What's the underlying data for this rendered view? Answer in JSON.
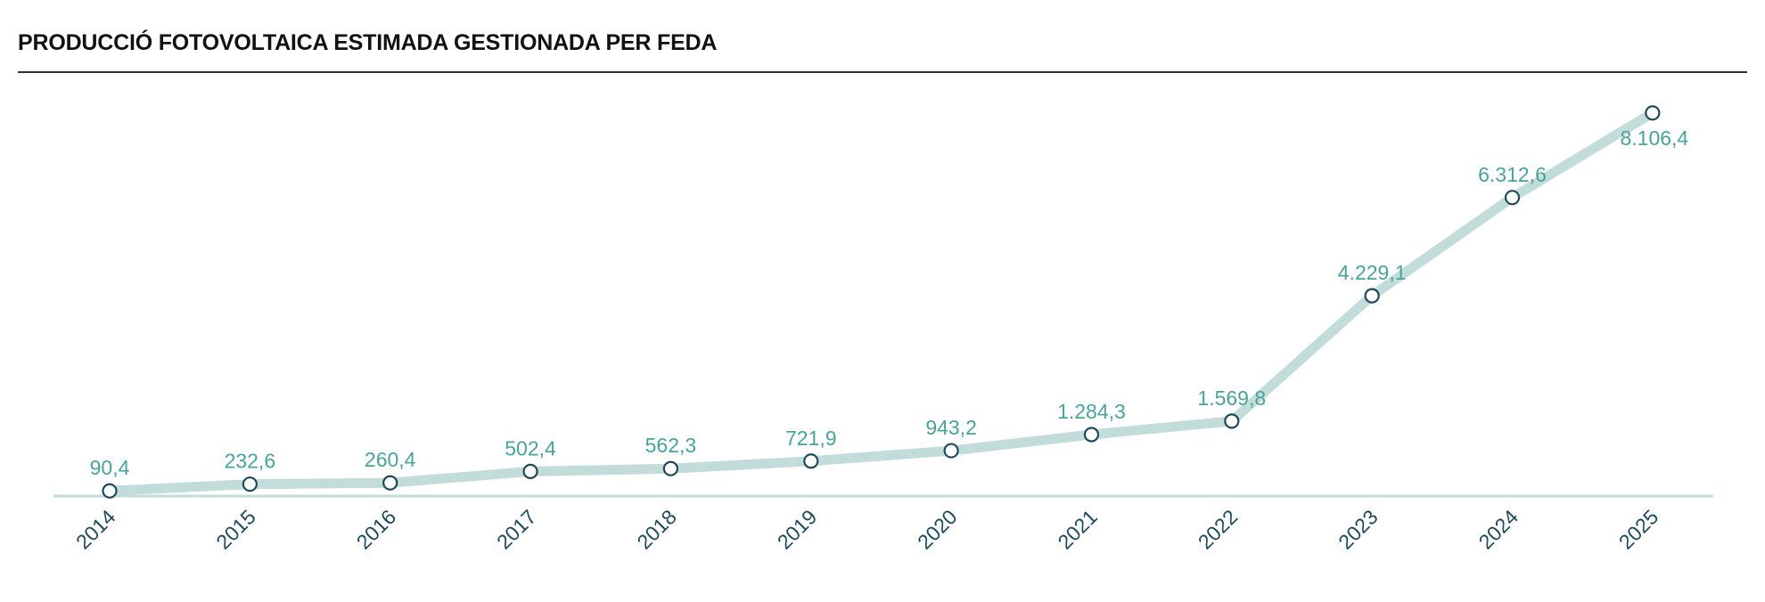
{
  "title": "PRODUCCIÓ FOTOVOLTAICA ESTIMADA GESTIONADA PER FEDA",
  "colors": {
    "line": "#c2dcd9",
    "marker_stroke": "#1e4a5a",
    "marker_fill": "#ffffff",
    "value_label": "#4aa39a",
    "tick_label": "#1f4a5c",
    "baseline": "#c2dcd9",
    "title_rule": "#333333"
  },
  "chart_data": {
    "type": "line",
    "title": "PRODUCCIÓ FOTOVOLTAICA ESTIMADA GESTIONADA PER FEDA",
    "xlabel": "",
    "ylabel": "",
    "grid": false,
    "legend": "none",
    "categories": [
      "2014",
      "2015",
      "2016",
      "2017",
      "2018",
      "2019",
      "2020",
      "2021",
      "2022",
      "2023",
      "2024",
      "2025"
    ],
    "values": [
      90.4,
      232.6,
      260.4,
      502.4,
      562.3,
      721.9,
      943.2,
      1284.3,
      1569.8,
      4229.1,
      6312.6,
      8106.4
    ],
    "value_labels": [
      "90,4",
      "232,6",
      "260,4",
      "502,4",
      "562,3",
      "721,9",
      "943,2",
      "1.284,3",
      "1.569,8",
      "4.229,1",
      "6.312,6",
      "8.106,4"
    ],
    "ylim": [
      0,
      8500
    ]
  }
}
